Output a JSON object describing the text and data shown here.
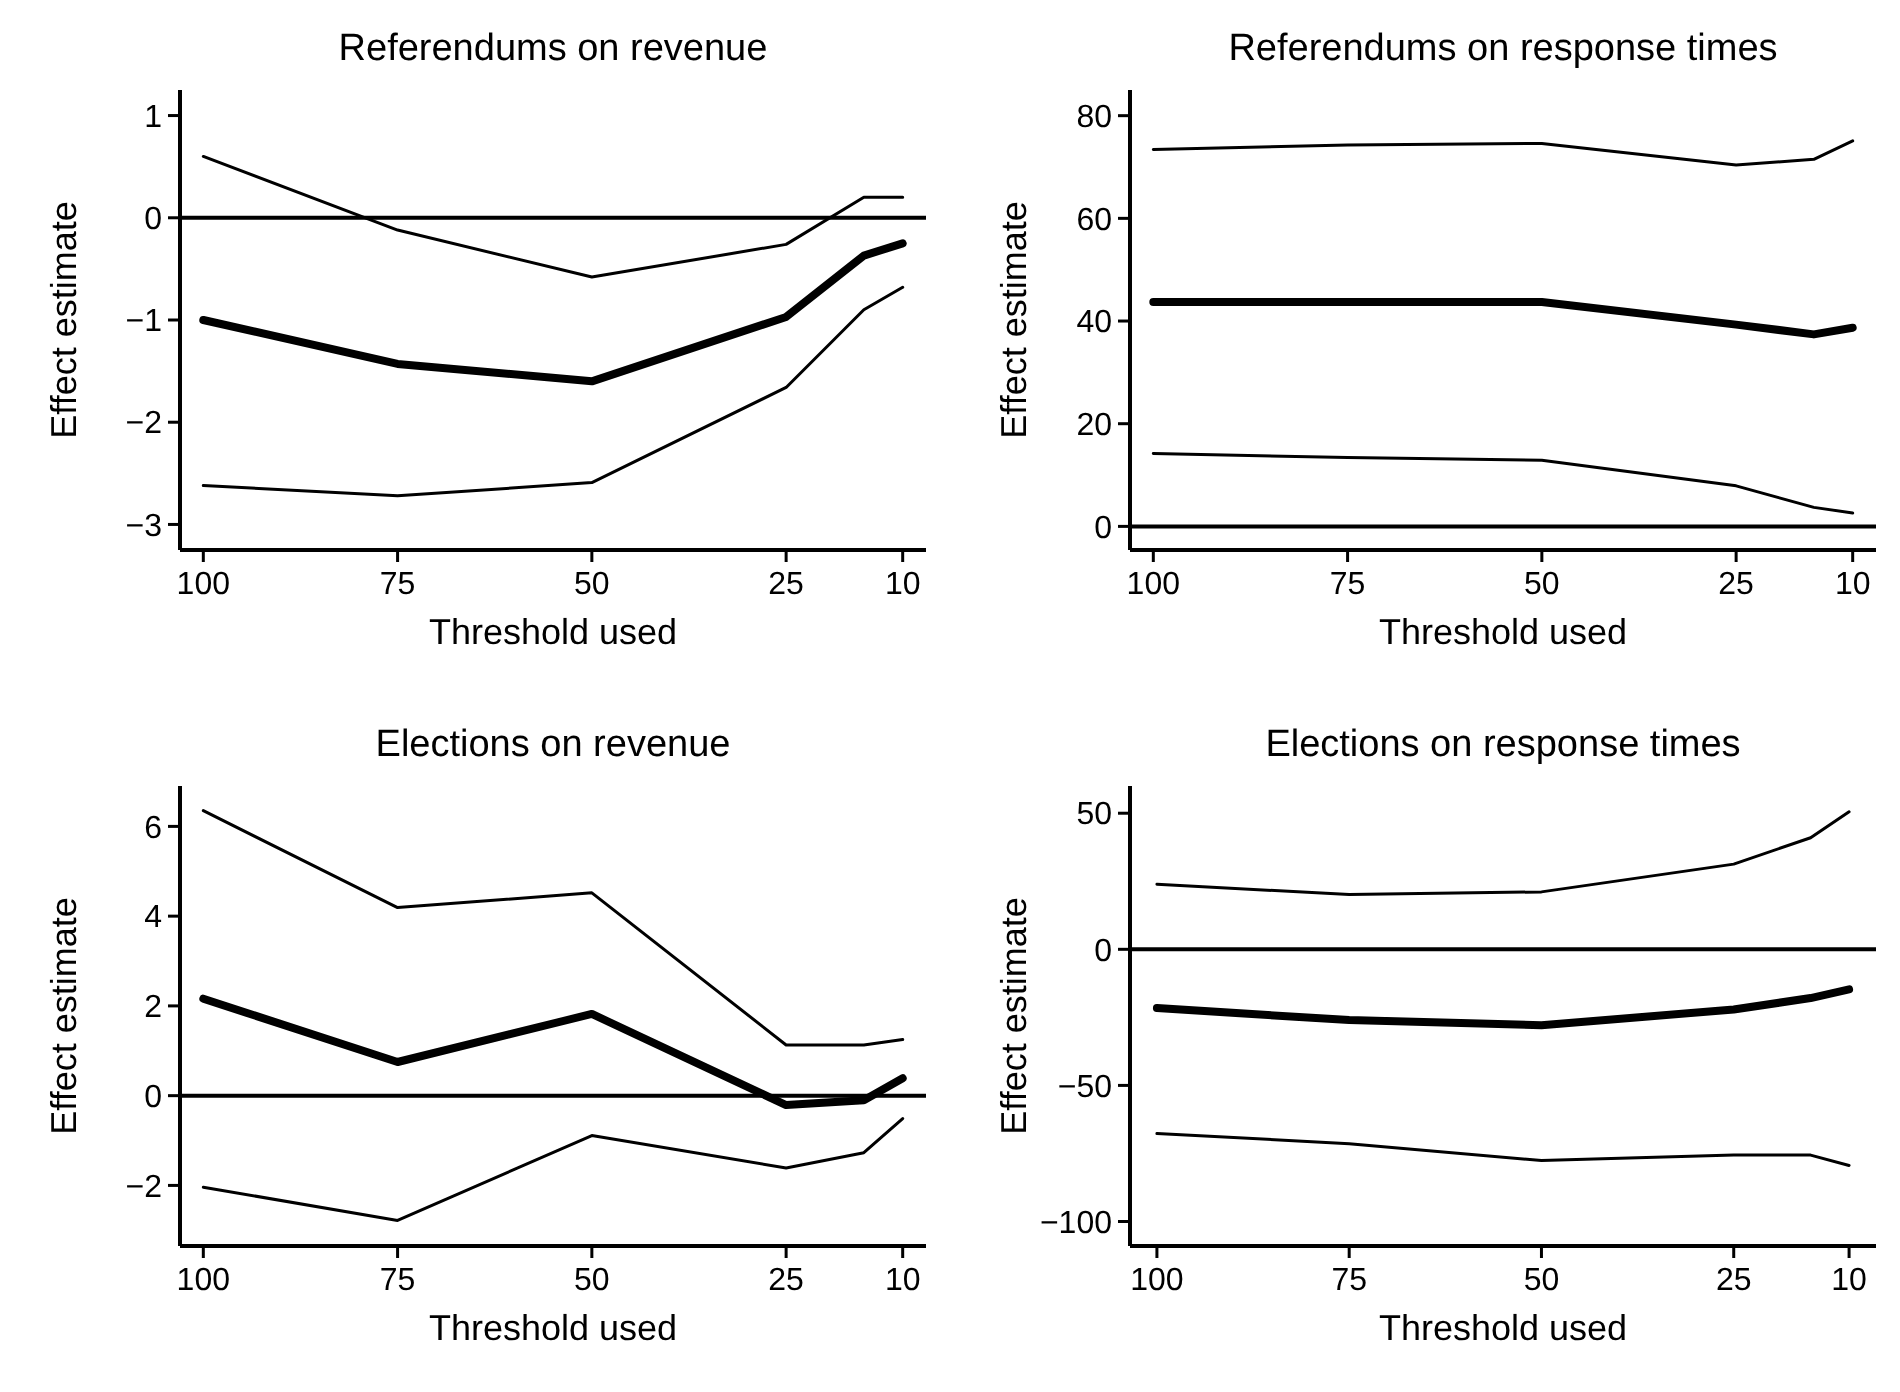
{
  "chart_data": [
    {
      "type": "line",
      "title": "Referendums on revenue",
      "xlabel": "Threshold used",
      "ylabel": "Effect estimate",
      "x": [
        100,
        75,
        50,
        25,
        15,
        10
      ],
      "xlim": [
        103,
        7
      ],
      "xticks": [
        100,
        75,
        50,
        25,
        10
      ],
      "ylim": [
        -3.25,
        1.25
      ],
      "yticks": [
        {
          "value": 1,
          "label": "1"
        },
        {
          "value": 0,
          "label": "0"
        },
        {
          "value": -1,
          "label": "−1"
        },
        {
          "value": -2,
          "label": "−2"
        },
        {
          "value": -3,
          "label": "−3"
        }
      ],
      "grid": false,
      "marker": "none",
      "line_style": "solid",
      "ref_lines": [
        {
          "axis": "y",
          "value": 0,
          "label": null
        }
      ],
      "series": [
        {
          "color": "#000000",
          "values": [
            -1.0,
            -1.43,
            -1.6,
            -0.97,
            -0.37,
            -0.25
          ]
        },
        {
          "color": "#000000",
          "values": [
            0.6,
            -0.12,
            -0.58,
            -0.26,
            0.2,
            0.2
          ]
        },
        {
          "color": "#000000",
          "values": [
            -2.62,
            -2.72,
            -2.59,
            -1.66,
            -0.9,
            -0.68
          ]
        }
      ]
    },
    {
      "type": "line",
      "title": "Referendums on response times",
      "xlabel": "Threshold used",
      "ylabel": "Effect estimate",
      "x": [
        100,
        75,
        50,
        25,
        15,
        10
      ],
      "xlim": [
        103,
        7
      ],
      "xticks": [
        100,
        75,
        50,
        25,
        10
      ],
      "ylim": [
        -4.6,
        85
      ],
      "yticks": [
        0,
        20,
        40,
        60,
        80
      ],
      "grid": false,
      "marker": "none",
      "line_style": "solid",
      "ref_lines": [
        {
          "axis": "y",
          "value": 0,
          "label": null
        }
      ],
      "series": [
        {
          "color": "#000000",
          "values": [
            43.7,
            43.7,
            43.7,
            39.3,
            37.4,
            38.7
          ]
        },
        {
          "color": "#000000",
          "values": [
            73.4,
            74.3,
            74.6,
            70.4,
            71.5,
            75.1
          ]
        },
        {
          "color": "#000000",
          "values": [
            14.2,
            13.4,
            12.9,
            7.9,
            3.7,
            2.6
          ]
        }
      ]
    },
    {
      "type": "line",
      "title": "Elections on revenue",
      "xlabel": "Threshold used",
      "ylabel": "Effect estimate",
      "x": [
        100,
        75,
        50,
        25,
        15,
        10
      ],
      "xlim": [
        103,
        7
      ],
      "xticks": [
        100,
        75,
        50,
        25,
        10
      ],
      "ylim": [
        -3.35,
        6.9
      ],
      "yticks": [
        {
          "value": 6,
          "label": "6"
        },
        {
          "value": 4,
          "label": "4"
        },
        {
          "value": 2,
          "label": "2"
        },
        {
          "value": 0,
          "label": "0"
        },
        {
          "value": -2,
          "label": "−2"
        }
      ],
      "grid": false,
      "marker": "none",
      "line_style": "solid",
      "ref_lines": [
        {
          "axis": "y",
          "value": 0,
          "label": null
        }
      ],
      "series": [
        {
          "color": "#000000",
          "values": [
            2.16,
            0.75,
            1.82,
            -0.21,
            -0.1,
            0.39
          ]
        },
        {
          "color": "#000000",
          "values": [
            6.35,
            4.19,
            4.52,
            1.13,
            1.13,
            1.25
          ]
        },
        {
          "color": "#000000",
          "values": [
            -2.04,
            -2.78,
            -0.89,
            -1.61,
            -1.27,
            -0.51
          ]
        }
      ]
    },
    {
      "type": "line",
      "title": "Elections on response times",
      "xlabel": "Threshold used",
      "ylabel": "Effect estimate",
      "x": [
        100,
        75,
        50,
        25,
        15,
        10
      ],
      "xlim": [
        103.5,
        6.5
      ],
      "xticks": [
        100,
        75,
        50,
        25,
        10
      ],
      "ylim": [
        -109,
        60
      ],
      "yticks": [
        {
          "value": 50,
          "label": "50"
        },
        {
          "value": 0,
          "label": "0"
        },
        {
          "value": -50,
          "label": "−50"
        },
        {
          "value": -100,
          "label": "−100"
        }
      ],
      "grid": false,
      "marker": "none",
      "line_style": "solid",
      "ref_lines": [
        {
          "axis": "y",
          "value": 0,
          "label": null
        }
      ],
      "series": [
        {
          "color": "#000000",
          "values": [
            -21.6,
            -26,
            -27.9,
            -22.1,
            -17.9,
            -14.7
          ]
        },
        {
          "color": "#000000",
          "values": [
            23.9,
            20.1,
            21.1,
            31.3,
            41,
            50.5
          ]
        },
        {
          "color": "#000000",
          "values": [
            -67.7,
            -71.4,
            -77.6,
            -75.6,
            -75.6,
            -79.4
          ]
        }
      ]
    }
  ]
}
